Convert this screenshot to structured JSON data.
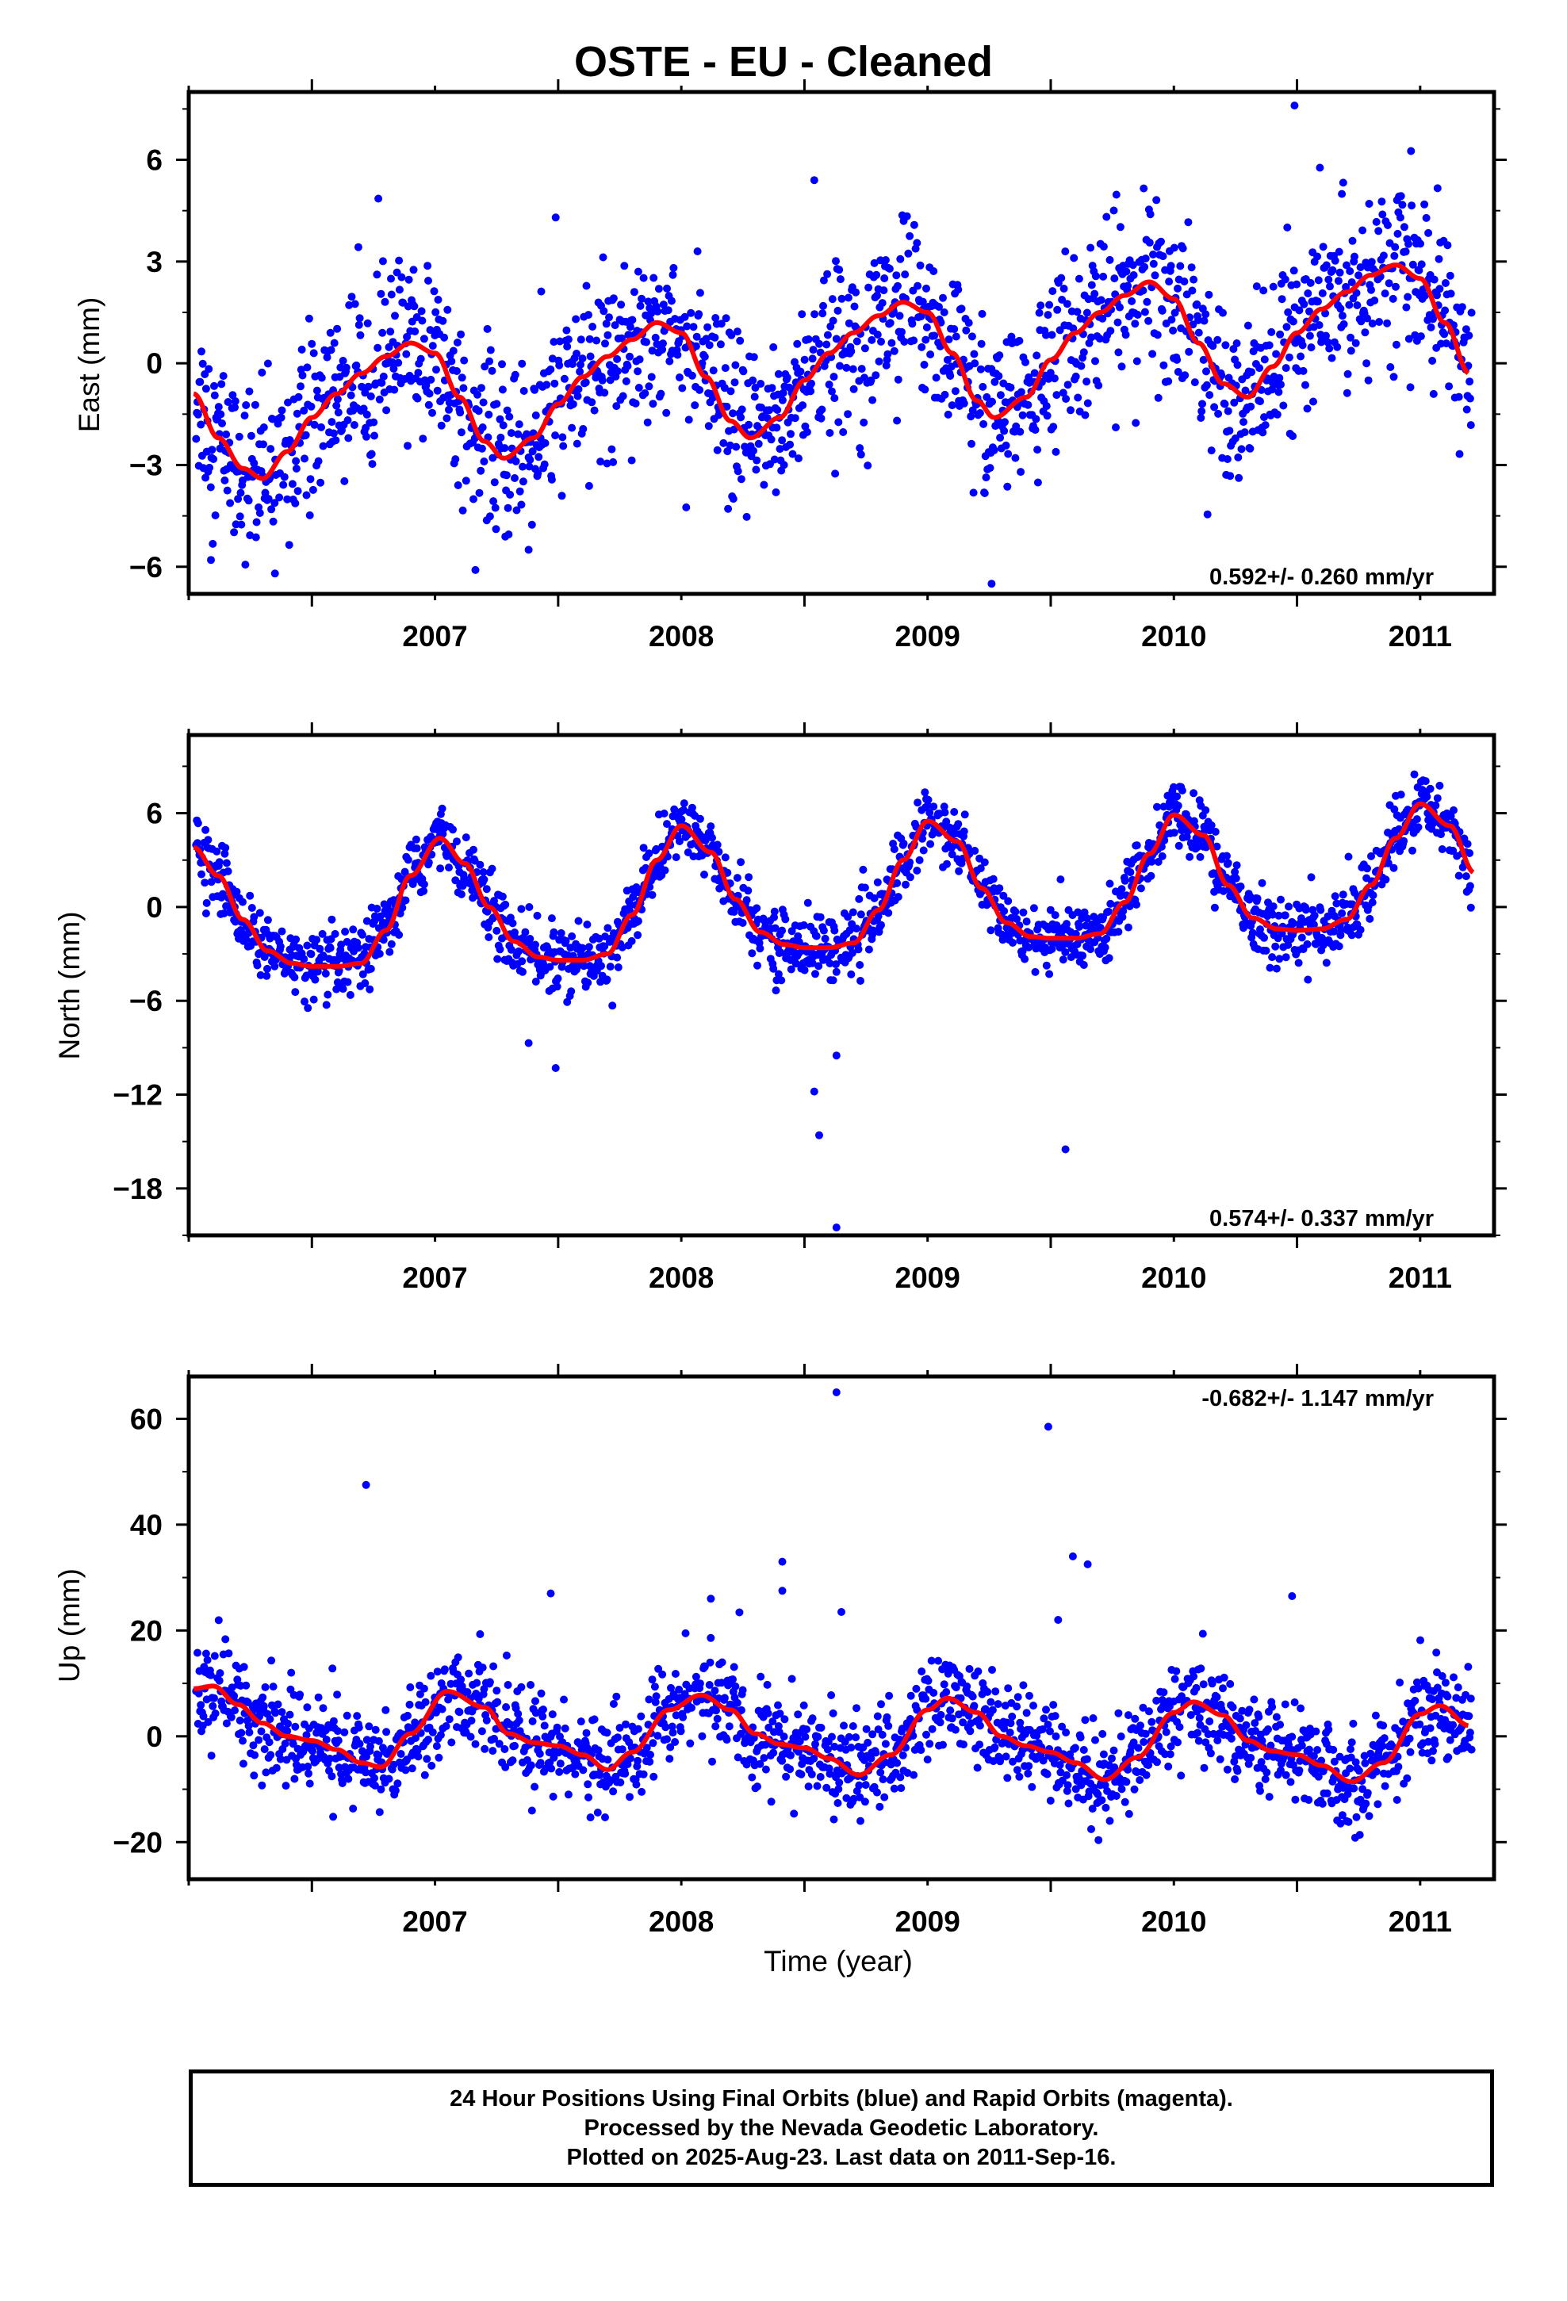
{
  "title": "OSTE  - EU - Cleaned",
  "colors": {
    "points": "#0000ff",
    "fit": "#ff0000",
    "frame": "#000000"
  },
  "footer": {
    "line1": "24 Hour Positions Using Final Orbits (blue) and Rapid Orbits (magenta).",
    "line2": "Processed by the Nevada Geodetic Laboratory.",
    "line3": "Plotted on 2025-Aug-23. Last data on 2011-Sep-16."
  },
  "chart_data": [
    {
      "type": "scatter",
      "ylabel": "East (mm)",
      "xlabel": "",
      "xlim": [
        2006.5,
        2011.8
      ],
      "ylim": [
        -6.8,
        8.0
      ],
      "yticks": [
        6,
        3,
        0,
        -3,
        -6
      ],
      "xticks": [
        2007,
        2008,
        2009,
        2010,
        2011
      ],
      "rate_label": "0.592+/- 0.260 mm/yr",
      "rate_position": "bottom-right",
      "series": [
        {
          "kind": "fit",
          "x": [
            2006.52,
            2006.62,
            2006.72,
            2006.8,
            2006.9,
            2007.0,
            2007.1,
            2007.2,
            2007.3,
            2007.4,
            2007.5,
            2007.6,
            2007.7,
            2007.78,
            2007.9,
            2008.0,
            2008.1,
            2008.2,
            2008.3,
            2008.4,
            2008.5,
            2008.6,
            2008.7,
            2008.78,
            2008.9,
            2009.0,
            2009.1,
            2009.2,
            2009.3,
            2009.4,
            2009.5,
            2009.6,
            2009.7,
            2009.77,
            2009.9,
            2010.0,
            2010.1,
            2010.2,
            2010.3,
            2010.4,
            2010.5,
            2010.6,
            2010.7,
            2010.8,
            2010.9,
            2011.0,
            2011.1,
            2011.2,
            2011.3,
            2011.4,
            2011.5,
            2011.6,
            2011.7
          ],
          "y": [
            -0.9,
            -2.2,
            -3.1,
            -3.4,
            -2.6,
            -1.6,
            -0.9,
            -0.3,
            0.2,
            0.6,
            0.3,
            -1.0,
            -2.3,
            -2.8,
            -2.2,
            -1.2,
            -0.4,
            0.2,
            0.7,
            1.2,
            0.9,
            -0.4,
            -1.7,
            -2.2,
            -1.6,
            -0.5,
            0.3,
            0.9,
            1.4,
            1.8,
            1.5,
            0.3,
            -1.1,
            -1.6,
            -1.0,
            0.1,
            0.9,
            1.5,
            2.0,
            2.4,
            1.9,
            0.6,
            -0.6,
            -1.0,
            -0.1,
            0.9,
            1.6,
            2.1,
            2.6,
            2.9,
            2.5,
            1.2,
            -0.3
          ]
        },
        {
          "kind": "outliers",
          "x": [
            2010.99,
            2009.04,
            2009.76,
            2007.99,
            2006.85,
            2006.59,
            2007.88
          ],
          "y": [
            7.6,
            5.4,
            -6.5,
            4.3,
            -6.2,
            -5.8,
            -5.5
          ]
        }
      ]
    },
    {
      "type": "scatter",
      "ylabel": "North (mm)",
      "xlabel": "",
      "xlim": [
        2006.5,
        2011.8
      ],
      "ylim": [
        -21.0,
        11.0
      ],
      "yticks": [
        6,
        0,
        -6,
        -12,
        -18
      ],
      "xticks": [
        2007,
        2008,
        2009,
        2010,
        2011
      ],
      "rate_label": "0.574+/- 0.337 mm/yr",
      "rate_position": "bottom-right",
      "series": [
        {
          "kind": "fit",
          "x": [
            2006.52,
            2006.62,
            2006.72,
            2006.82,
            2006.92,
            2007.0,
            2007.1,
            2007.2,
            2007.3,
            2007.4,
            2007.52,
            2007.62,
            2007.72,
            2007.82,
            2007.92,
            2008.0,
            2008.1,
            2008.2,
            2008.3,
            2008.4,
            2008.5,
            2008.62,
            2008.72,
            2008.82,
            2008.92,
            2009.0,
            2009.1,
            2009.2,
            2009.3,
            2009.4,
            2009.5,
            2009.62,
            2009.72,
            2009.82,
            2009.92,
            2010.0,
            2010.1,
            2010.2,
            2010.3,
            2010.4,
            2010.5,
            2010.62,
            2010.72,
            2010.82,
            2010.92,
            2011.0,
            2011.1,
            2011.2,
            2011.3,
            2011.4,
            2011.5,
            2011.62,
            2011.72
          ],
          "y": [
            3.8,
            2.0,
            -0.8,
            -2.8,
            -3.6,
            -3.8,
            -3.8,
            -3.6,
            -1.5,
            2.0,
            4.4,
            2.8,
            0.0,
            -2.2,
            -3.2,
            -3.4,
            -3.4,
            -3.0,
            -0.5,
            3.0,
            5.2,
            3.5,
            0.5,
            -1.6,
            -2.4,
            -2.6,
            -2.6,
            -2.3,
            -0.2,
            3.0,
            5.5,
            4.2,
            1.2,
            -1.0,
            -1.9,
            -2.0,
            -2.0,
            -1.7,
            0.3,
            3.4,
            5.9,
            4.6,
            1.4,
            -0.7,
            -1.4,
            -1.5,
            -1.4,
            -0.8,
            1.4,
            4.4,
            6.6,
            5.2,
            2.2
          ]
        },
        {
          "kind": "outliers",
          "x": [
            2009.13,
            2009.06,
            2009.04,
            2010.06,
            2007.99,
            2007.88,
            2009.13
          ],
          "y": [
            -20.5,
            -14.6,
            -11.8,
            -15.5,
            -10.3,
            -8.7,
            -9.5
          ]
        }
      ]
    },
    {
      "type": "scatter",
      "ylabel": "Up (mm)",
      "xlabel": "Time (year)",
      "xlim": [
        2006.5,
        2011.8
      ],
      "ylim": [
        -27.0,
        68.0
      ],
      "yticks": [
        60,
        40,
        20,
        0,
        -20
      ],
      "xticks": [
        2007,
        2008,
        2009,
        2010,
        2011
      ],
      "rate_label": "-0.682+/- 1.147 mm/yr",
      "rate_position": "top-right",
      "series": [
        {
          "kind": "fit",
          "x": [
            2006.52,
            2006.6,
            2006.7,
            2006.8,
            2006.9,
            2007.0,
            2007.1,
            2007.2,
            2007.28,
            2007.4,
            2007.55,
            2007.7,
            2007.8,
            2007.9,
            2008.0,
            2008.1,
            2008.2,
            2008.3,
            2008.45,
            2008.58,
            2008.7,
            2008.8,
            2008.9,
            2009.0,
            2009.1,
            2009.22,
            2009.35,
            2009.5,
            2009.58,
            2009.7,
            2009.8,
            2009.9,
            2010.0,
            2010.1,
            2010.22,
            2010.35,
            2010.5,
            2010.58,
            2010.7,
            2010.8,
            2010.9,
            2011.0,
            2011.1,
            2011.22,
            2011.35,
            2011.5,
            2011.58,
            2011.7
          ],
          "y": [
            9.0,
            9.5,
            6.0,
            2.5,
            0.0,
            -0.8,
            -2.5,
            -5.0,
            -5.8,
            0.5,
            8.5,
            5.5,
            0.5,
            -1.2,
            -1.8,
            -3.5,
            -6.3,
            -3.0,
            5.0,
            7.8,
            5.0,
            0.5,
            -1.5,
            -2.2,
            -4.2,
            -7.3,
            -3.5,
            5.0,
            7.2,
            4.5,
            0.0,
            -1.8,
            -3.0,
            -5.0,
            -8.2,
            -4.0,
            4.5,
            6.5,
            4.0,
            -0.8,
            -2.8,
            -3.5,
            -5.5,
            -8.6,
            -5.0,
            4.2,
            5.8,
            2.0
          ]
        },
        {
          "kind": "outliers",
          "x": [
            2009.13,
            2009.99,
            2007.22,
            2010.09,
            2010.15,
            2008.91,
            2010.98,
            2007.97,
            2008.62,
            2009.15,
            2008.91,
            2010.03
          ],
          "y": [
            65.0,
            58.5,
            47.5,
            34.0,
            32.5,
            33.0,
            26.5,
            27.0,
            26.0,
            23.5,
            27.5,
            22.0
          ]
        }
      ]
    }
  ]
}
